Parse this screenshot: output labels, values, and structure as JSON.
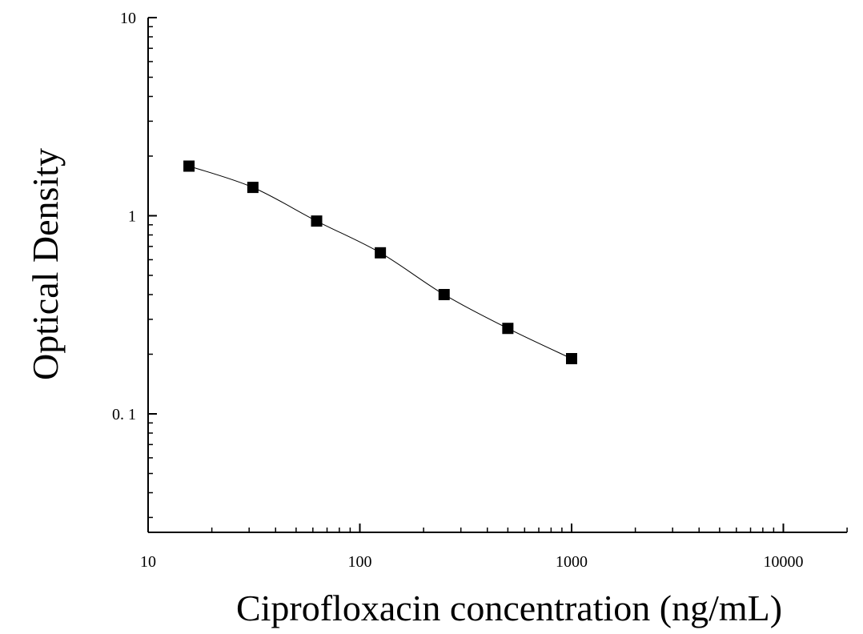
{
  "chart_data": {
    "type": "scatter",
    "title": "",
    "xlabel": "Ciprofloxacin concentration (ng/mL)",
    "ylabel": "Optical Density",
    "xscale": "log",
    "yscale": "log",
    "xlim": [
      10,
      20000
    ],
    "ylim": [
      0.025,
      10
    ],
    "xticks": [
      {
        "value": 10,
        "label": "10"
      },
      {
        "value": 100,
        "label": "100"
      },
      {
        "value": 1000,
        "label": "1000"
      },
      {
        "value": 10000,
        "label": "10000"
      }
    ],
    "yticks": [
      {
        "value": 0.1,
        "label": "0. 1"
      },
      {
        "value": 1,
        "label": "1"
      },
      {
        "value": 10,
        "label": "10"
      }
    ],
    "grid": false,
    "legend": "none",
    "series": [
      {
        "x": [
          15.6,
          31.25,
          62.5,
          125,
          250,
          500,
          1000
        ],
        "y": [
          1.78,
          1.39,
          0.94,
          0.65,
          0.4,
          0.27,
          0.19
        ],
        "marker": "square",
        "fit": "smooth-curve",
        "color": "#000000"
      }
    ]
  }
}
